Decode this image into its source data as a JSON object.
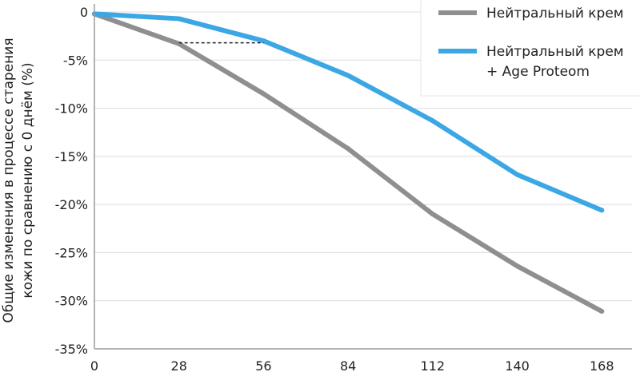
{
  "chart_data": {
    "type": "line",
    "title": "",
    "xlabel": "",
    "ylabel_lines": [
      "Общие изменения в процессе старения",
      "кожи по сравнению с 0 днём (%)"
    ],
    "x": [
      0,
      28,
      56,
      84,
      112,
      140,
      168
    ],
    "xlim": [
      0,
      178
    ],
    "ylim": [
      -35,
      0
    ],
    "x_tick_labels": [
      "0",
      "28",
      "56",
      "84",
      "112",
      "140",
      "168"
    ],
    "y_ticks": [
      0,
      -5,
      -10,
      -15,
      -20,
      -25,
      -30,
      -35
    ],
    "y_tick_labels": [
      "0",
      "-5%",
      "-10%",
      "-15%",
      "-20%",
      "-25%",
      "-30%",
      "-35%"
    ],
    "grid": "horizontal",
    "legend_position": "top-right",
    "series": [
      {
        "name": "Нейтральный крем",
        "color": "#8f8f8f",
        "values": [
          -0.2,
          -3.3,
          -8.5,
          -14.2,
          -21.0,
          -26.4,
          -31.1
        ]
      },
      {
        "name": "Нейтральный крем\n+ Age Proteom",
        "name_lines": [
          "Нейтральный крем",
          "+ Age Proteom"
        ],
        "color": "#3ba7e4",
        "values": [
          -0.2,
          -0.7,
          -3.0,
          -6.6,
          -11.3,
          -16.9,
          -20.6
        ]
      }
    ],
    "annotation": {
      "type": "dashed-reference",
      "from_x": 28,
      "to_x": 56,
      "y": -3.2,
      "color": "#222222"
    }
  }
}
